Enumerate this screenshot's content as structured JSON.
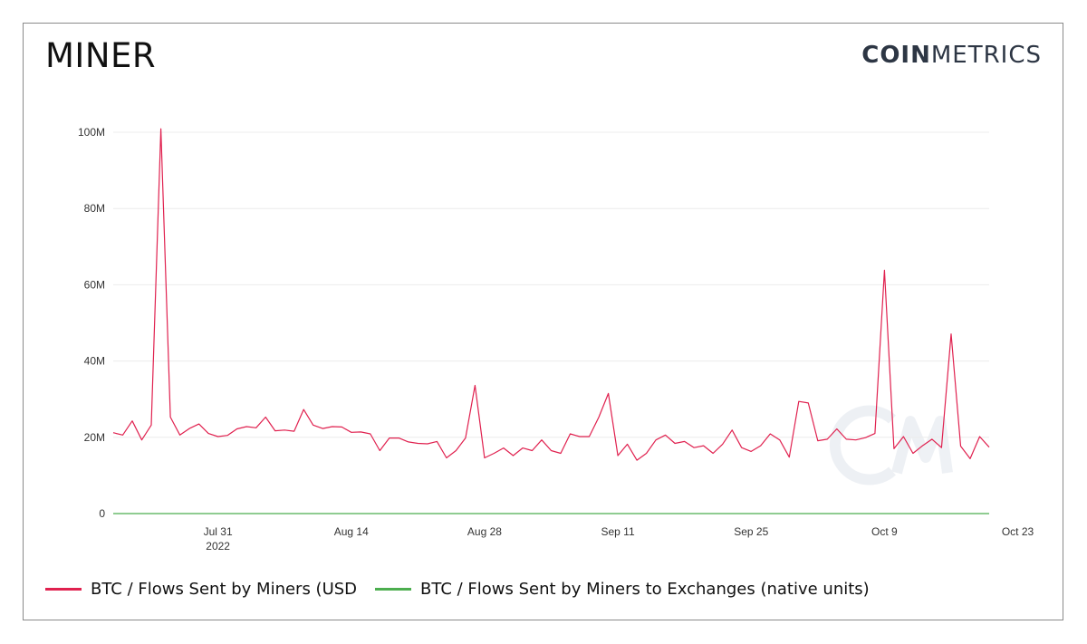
{
  "header": {
    "title": "MINER",
    "brand_bold": "COIN",
    "brand_light": "METRICS"
  },
  "colors": {
    "series1": "#e0214f",
    "series2": "#4cae4f",
    "grid": "#ececec"
  },
  "chart_data": {
    "type": "line",
    "y_ticks": [
      "100M",
      "80M",
      "60M",
      "40M",
      "20M",
      "0"
    ],
    "ylim": [
      0,
      100000000
    ],
    "x_ticks": [
      {
        "label": "Jul 31",
        "sub": "2022",
        "day": 11
      },
      {
        "label": "Aug 14",
        "sub": "",
        "day": 25
      },
      {
        "label": "Aug 28",
        "sub": "",
        "day": 39
      },
      {
        "label": "Sep 11",
        "sub": "",
        "day": 53
      },
      {
        "label": "Sep 25",
        "sub": "",
        "day": 67
      },
      {
        "label": "Oct 9",
        "sub": "",
        "day": 81
      },
      {
        "label": "Oct 23",
        "sub": "",
        "day": 95
      }
    ],
    "series": [
      {
        "name": "BTC / Flows Sent by Miners (USD",
        "values": [
          21.2,
          20.6,
          24.3,
          19.3,
          23.2,
          100.9,
          25.3,
          20.6,
          22.3,
          23.5,
          21.0,
          20.2,
          20.5,
          22.2,
          22.8,
          22.5,
          25.3,
          21.7,
          21.9,
          21.6,
          27.3,
          23.2,
          22.3,
          22.8,
          22.7,
          21.3,
          21.4,
          20.9,
          16.5,
          19.8,
          19.8,
          18.8,
          18.4,
          18.3,
          18.9,
          14.6,
          16.5,
          19.8,
          33.6,
          14.6,
          15.8,
          17.2,
          15.2,
          17.2,
          16.5,
          19.3,
          16.5,
          15.8,
          20.9,
          20.2,
          20.2,
          25.3,
          31.5,
          15.2,
          18.2,
          14.0,
          15.8,
          19.3,
          20.6,
          18.4,
          18.9,
          17.3,
          17.8,
          15.8,
          18.2,
          21.9,
          17.3,
          16.3,
          17.8,
          20.9,
          19.3,
          14.8,
          29.4,
          29.0,
          19.1,
          19.5,
          22.2,
          19.5,
          19.3,
          19.9,
          21.0,
          63.8,
          17.0,
          20.2,
          15.8,
          17.8,
          19.5,
          17.3,
          47.1,
          17.7,
          14.4,
          20.2,
          17.4
        ],
        "unit": "M USD"
      },
      {
        "name": "BTC / Flows Sent by Miners to Exchanges (native units)",
        "values_constant": 0
      }
    ],
    "grid": true,
    "legend_position": "bottom-left"
  }
}
